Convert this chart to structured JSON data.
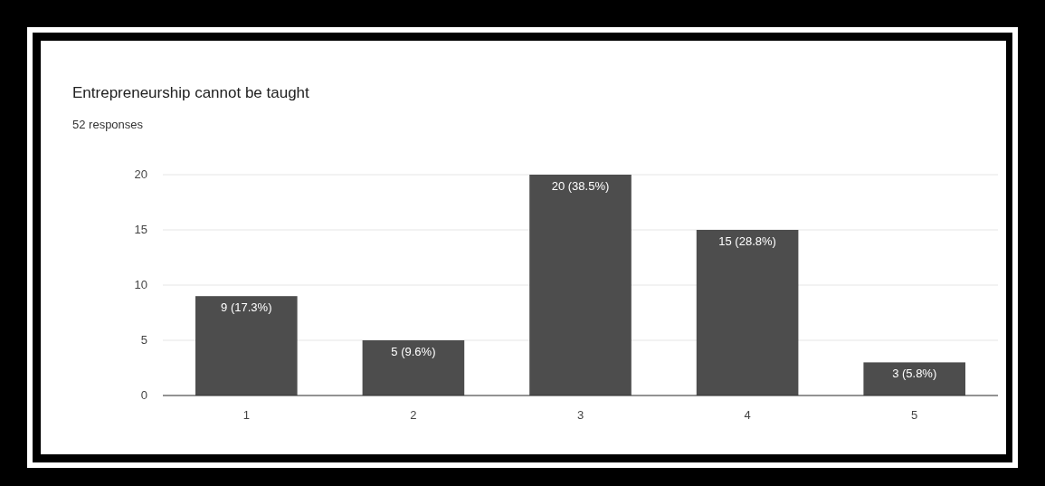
{
  "chart_data": {
    "type": "bar",
    "title": "Entrepreneurship cannot be taught",
    "subtitle": "52 responses",
    "categories": [
      "1",
      "2",
      "3",
      "4",
      "5"
    ],
    "values": [
      9,
      5,
      20,
      15,
      3
    ],
    "value_labels": [
      "9 (17.3%)",
      "5 (9.6%)",
      "20 (38.5%)",
      "15 (28.8%)",
      "3 (5.8%)"
    ],
    "color": "#4d4d4d",
    "ylim": [
      0,
      20
    ],
    "yticks": [
      0,
      5,
      10,
      15,
      20
    ],
    "grid": "y"
  }
}
